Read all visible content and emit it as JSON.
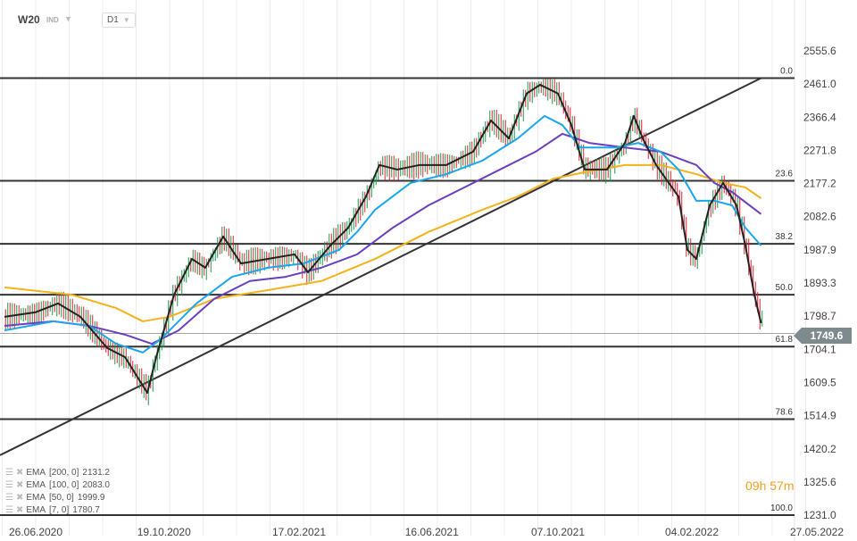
{
  "header": {
    "symbol": "W20",
    "type": "IND",
    "timeframe": "D1"
  },
  "last_price": "1749.6",
  "timer": "09h 57m",
  "legend": [
    {
      "label": "EMA",
      "params": "[200,  0]",
      "value": "2131.2"
    },
    {
      "label": "EMA",
      "params": "[100,  0]",
      "value": "2083.0"
    },
    {
      "label": "EMA",
      "params": "[50,  0]",
      "value": "1999.9"
    },
    {
      "label": "EMA",
      "params": "[7, 0]",
      "value": "1780.7"
    }
  ],
  "colors": {
    "ema200": "#f5b21a",
    "ema100": "#6a3fc0",
    "ema50": "#1aa6e8",
    "ema7": "#222222",
    "up": "#1a9a4a",
    "down": "#e02030",
    "level": "#333333"
  },
  "chart_data": {
    "type": "line",
    "x_unit": "days since 26.06.2020",
    "xlim": [
      -32,
      680
    ],
    "ylim": [
      1231.0,
      2555.6
    ],
    "y_ticks": [
      "2555.6",
      "2461.0",
      "2366.4",
      "2271.8",
      "2177.2",
      "2082.6",
      "1987.9",
      "1893.3",
      "1798.7",
      "1704.1",
      "1609.5",
      "1514.9",
      "1420.2",
      "1325.6",
      "1231.0"
    ],
    "x_ticks": [
      {
        "day": 0,
        "label": "26.06.2020"
      },
      {
        "day": 115,
        "label": "19.10.2020"
      },
      {
        "day": 236,
        "label": "17.02.2021"
      },
      {
        "day": 355,
        "label": "16.06.2021"
      },
      {
        "day": 468,
        "label": "07.10.2021"
      },
      {
        "day": 588,
        "label": "04.02.2022"
      },
      {
        "day": 700,
        "label": "27.05.2022"
      }
    ],
    "fib_levels": [
      {
        "label": "0.0",
        "price": 2478
      },
      {
        "label": "23.6",
        "price": 2185
      },
      {
        "label": "38.2",
        "price": 2005
      },
      {
        "label": "50.0",
        "price": 1860
      },
      {
        "label": "61.8",
        "price": 1712
      },
      {
        "label": "78.6",
        "price": 1505
      },
      {
        "label": "100.0",
        "price": 1231
      }
    ],
    "trendline": [
      [
        -32,
        1402
      ],
      [
        650,
        2478
      ]
    ],
    "series": [
      {
        "name": "EMA 200",
        "color_key": "ema200",
        "points": [
          [
            -28,
            1881
          ],
          [
            32,
            1860
          ],
          [
            72,
            1822
          ],
          [
            96,
            1784
          ],
          [
            120,
            1797
          ],
          [
            160,
            1848
          ],
          [
            208,
            1873
          ],
          [
            256,
            1899
          ],
          [
            304,
            1962
          ],
          [
            352,
            2039
          ],
          [
            400,
            2102
          ],
          [
            432,
            2140
          ],
          [
            464,
            2191
          ],
          [
            496,
            2212
          ],
          [
            528,
            2230
          ],
          [
            560,
            2230
          ],
          [
            592,
            2204
          ],
          [
            616,
            2179
          ],
          [
            636,
            2166
          ],
          [
            650,
            2135
          ]
        ]
      },
      {
        "name": "EMA 100",
        "color_key": "ema100",
        "points": [
          [
            -28,
            1771
          ],
          [
            16,
            1784
          ],
          [
            48,
            1771
          ],
          [
            80,
            1746
          ],
          [
            104,
            1720
          ],
          [
            128,
            1758
          ],
          [
            160,
            1848
          ],
          [
            192,
            1899
          ],
          [
            224,
            1911
          ],
          [
            256,
            1937
          ],
          [
            288,
            1975
          ],
          [
            320,
            2051
          ],
          [
            352,
            2115
          ],
          [
            384,
            2166
          ],
          [
            416,
            2217
          ],
          [
            448,
            2268
          ],
          [
            472,
            2319
          ],
          [
            496,
            2293
          ],
          [
            528,
            2280
          ],
          [
            560,
            2268
          ],
          [
            592,
            2230
          ],
          [
            608,
            2179
          ],
          [
            624,
            2153
          ],
          [
            650,
            2090
          ]
        ]
      },
      {
        "name": "EMA 50",
        "color_key": "ema50",
        "points": [
          [
            -28,
            1758
          ],
          [
            16,
            1784
          ],
          [
            48,
            1771
          ],
          [
            72,
            1720
          ],
          [
            96,
            1695
          ],
          [
            112,
            1733
          ],
          [
            144,
            1835
          ],
          [
            176,
            1911
          ],
          [
            208,
            1937
          ],
          [
            240,
            1949
          ],
          [
            272,
            1988
          ],
          [
            288,
            2039
          ],
          [
            304,
            2102
          ],
          [
            336,
            2179
          ],
          [
            368,
            2204
          ],
          [
            400,
            2242
          ],
          [
            432,
            2306
          ],
          [
            456,
            2370
          ],
          [
            472,
            2344
          ],
          [
            488,
            2280
          ],
          [
            520,
            2280
          ],
          [
            540,
            2293
          ],
          [
            560,
            2268
          ],
          [
            576,
            2217
          ],
          [
            592,
            2128
          ],
          [
            608,
            2128
          ],
          [
            624,
            2115
          ],
          [
            636,
            2051
          ],
          [
            650,
            2000
          ]
        ]
      },
      {
        "name": "EMA 7",
        "color_key": "ema7",
        "points": [
          [
            -28,
            1797
          ],
          [
            0,
            1810
          ],
          [
            20,
            1835
          ],
          [
            40,
            1797
          ],
          [
            64,
            1708
          ],
          [
            80,
            1682
          ],
          [
            100,
            1580
          ],
          [
            108,
            1682
          ],
          [
            124,
            1860
          ],
          [
            140,
            1962
          ],
          [
            152,
            1937
          ],
          [
            168,
            2026
          ],
          [
            184,
            1949
          ],
          [
            208,
            1962
          ],
          [
            232,
            1975
          ],
          [
            244,
            1924
          ],
          [
            264,
            2000
          ],
          [
            280,
            2051
          ],
          [
            296,
            2140
          ],
          [
            308,
            2230
          ],
          [
            324,
            2217
          ],
          [
            344,
            2230
          ],
          [
            368,
            2230
          ],
          [
            392,
            2268
          ],
          [
            408,
            2357
          ],
          [
            424,
            2306
          ],
          [
            440,
            2434
          ],
          [
            452,
            2459
          ],
          [
            468,
            2434
          ],
          [
            480,
            2344
          ],
          [
            492,
            2217
          ],
          [
            512,
            2217
          ],
          [
            528,
            2293
          ],
          [
            536,
            2370
          ],
          [
            544,
            2306
          ],
          [
            556,
            2230
          ],
          [
            576,
            2140
          ],
          [
            584,
            1988
          ],
          [
            592,
            1962
          ],
          [
            604,
            2115
          ],
          [
            616,
            2179
          ],
          [
            628,
            2115
          ],
          [
            636,
            2000
          ],
          [
            644,
            1860
          ],
          [
            650,
            1779
          ]
        ]
      }
    ]
  }
}
